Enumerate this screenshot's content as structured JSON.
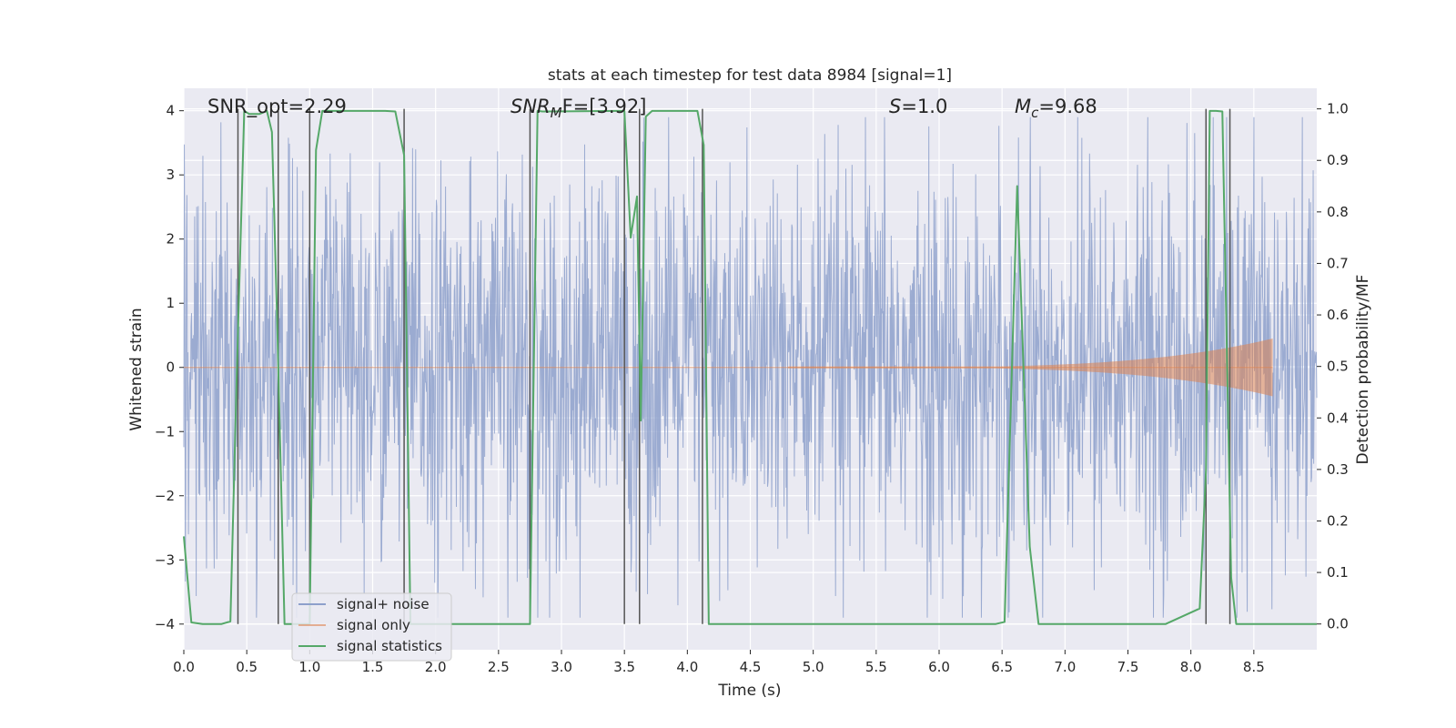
{
  "chart_data": {
    "type": "line",
    "title": "stats at each timestep for test data 8984 [signal=1]",
    "xlabel": "Time (s)",
    "ylabel": "Whitened strain",
    "ylabel_right": "Detection probability/MF",
    "xlim": [
      0.0,
      9.0
    ],
    "ylim": [
      -4.4,
      4.35
    ],
    "ylim_right": [
      -0.05,
      1.04
    ],
    "x_ticks": [
      0.0,
      0.5,
      1.0,
      1.5,
      2.0,
      2.5,
      3.0,
      3.5,
      4.0,
      4.5,
      5.0,
      5.5,
      6.0,
      6.5,
      7.0,
      7.5,
      8.0,
      8.5
    ],
    "x_tick_labels": [
      "0.0",
      "0.5",
      "1.0",
      "1.5",
      "2.0",
      "2.5",
      "3.0",
      "3.5",
      "4.0",
      "4.5",
      "5.0",
      "5.5",
      "6.0",
      "6.5",
      "7.0",
      "7.5",
      "8.0",
      "8.5"
    ],
    "y_ticks": [
      -4,
      -3,
      -2,
      -1,
      0,
      1,
      2,
      3,
      4
    ],
    "y_tick_labels": [
      "−4",
      "−3",
      "−2",
      "−1",
      "0",
      "1",
      "2",
      "3",
      "4"
    ],
    "y_right_ticks": [
      0.0,
      0.1,
      0.2,
      0.3,
      0.4,
      0.5,
      0.6,
      0.7,
      0.8,
      0.9,
      1.0
    ],
    "y_right_tick_labels": [
      "0.0",
      "0.1",
      "0.2",
      "0.3",
      "0.4",
      "0.5",
      "0.6",
      "0.7",
      "0.8",
      "0.9",
      "1.0"
    ],
    "grid": true,
    "legend_position": "lower-left",
    "annotations": {
      "snr_opt": "SNR_opt=2.29",
      "snr_mf_prefix": "SNR",
      "snr_mf_sub": "M",
      "snr_mf_suffix": "F=[3.92]",
      "s_var": "S",
      "s_value": "=1.0",
      "mc_var": "M",
      "mc_sub": "c",
      "mc_value": "=9.68"
    },
    "series": [
      {
        "name": "signal+ noise",
        "color": "#8da0cb",
        "kind": "noise",
        "duration": 9.0,
        "typical_range": [
          -2.4,
          2.4
        ],
        "peak_range": [
          -3.9,
          3.9
        ]
      },
      {
        "name": "signal only",
        "color": "#dd8452",
        "kind": "chirp",
        "start": 4.8,
        "end": 8.65,
        "peak_amplitude": 0.45
      },
      {
        "name": "signal statistics",
        "color": "#55a868",
        "axis": "right",
        "x": [
          0.0,
          0.06,
          0.15,
          0.3,
          0.37,
          0.42,
          0.48,
          0.52,
          0.6,
          0.66,
          0.7,
          0.74,
          0.8,
          0.86,
          0.95,
          1.0,
          1.05,
          1.1,
          1.6,
          1.68,
          1.75,
          1.8,
          2.1,
          2.55,
          2.68,
          2.75,
          2.81,
          2.85,
          3.45,
          3.5,
          3.55,
          3.6,
          3.63,
          3.67,
          3.72,
          3.8,
          4.08,
          4.13,
          4.17,
          4.2,
          4.3,
          5.9,
          6.45,
          6.52,
          6.62,
          6.72,
          6.79,
          7.8,
          8.07,
          8.12,
          8.15,
          8.2,
          8.25,
          8.32,
          8.36,
          8.45,
          8.6,
          9.0
        ],
        "values": [
          0.17,
          0.003,
          0.0,
          0.0,
          0.005,
          0.48,
          0.996,
          0.99,
          0.99,
          0.996,
          0.955,
          0.6,
          0.0,
          0.0,
          0.0,
          0.0,
          0.92,
          0.996,
          0.996,
          0.995,
          0.91,
          0.0,
          0.0,
          0.0,
          0.0,
          0.0,
          0.996,
          0.995,
          0.996,
          0.996,
          0.75,
          0.83,
          0.395,
          0.985,
          0.996,
          0.996,
          0.996,
          0.93,
          0.0,
          0.0,
          0.0,
          0.0,
          0.0,
          0.004,
          0.85,
          0.15,
          0.0,
          0.0,
          0.03,
          0.3,
          0.996,
          0.996,
          0.995,
          0.09,
          0.0,
          0.0,
          0.0,
          0.0
        ]
      }
    ],
    "vertical_markers": [
      0.43,
      0.75,
      1.0,
      1.75,
      2.75,
      3.5,
      3.62,
      4.12,
      8.12,
      8.31
    ]
  }
}
